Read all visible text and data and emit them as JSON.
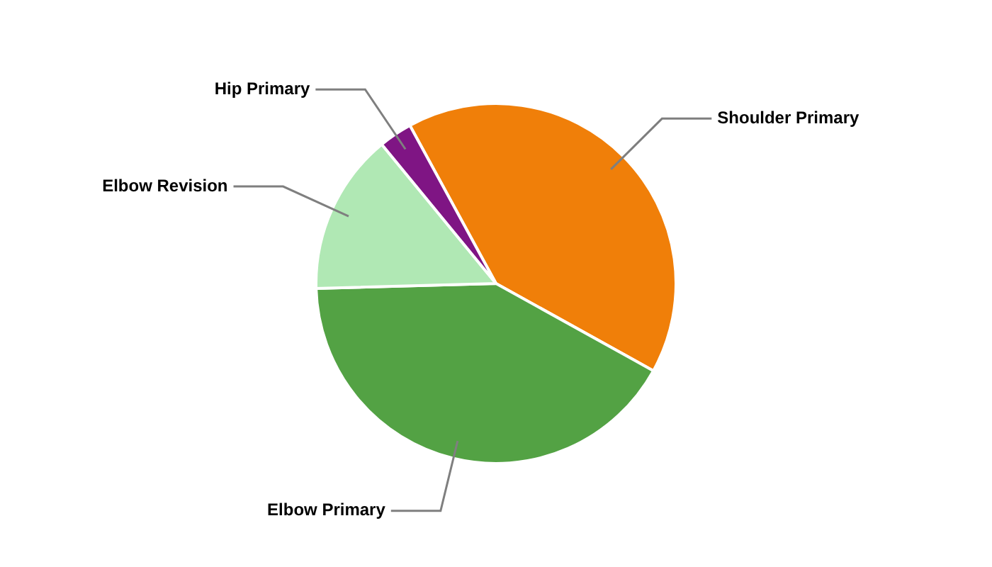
{
  "chart_data": {
    "type": "pie",
    "categories": [
      "Shoulder Primary",
      "Elbow Primary",
      "Elbow Revision",
      "Hip Primary"
    ],
    "values": [
      41,
      41.5,
      14.5,
      3
    ],
    "colors": [
      "#f07f09",
      "#53a244",
      "#b0e8b4",
      "#7f1584"
    ],
    "legend": false
  }
}
